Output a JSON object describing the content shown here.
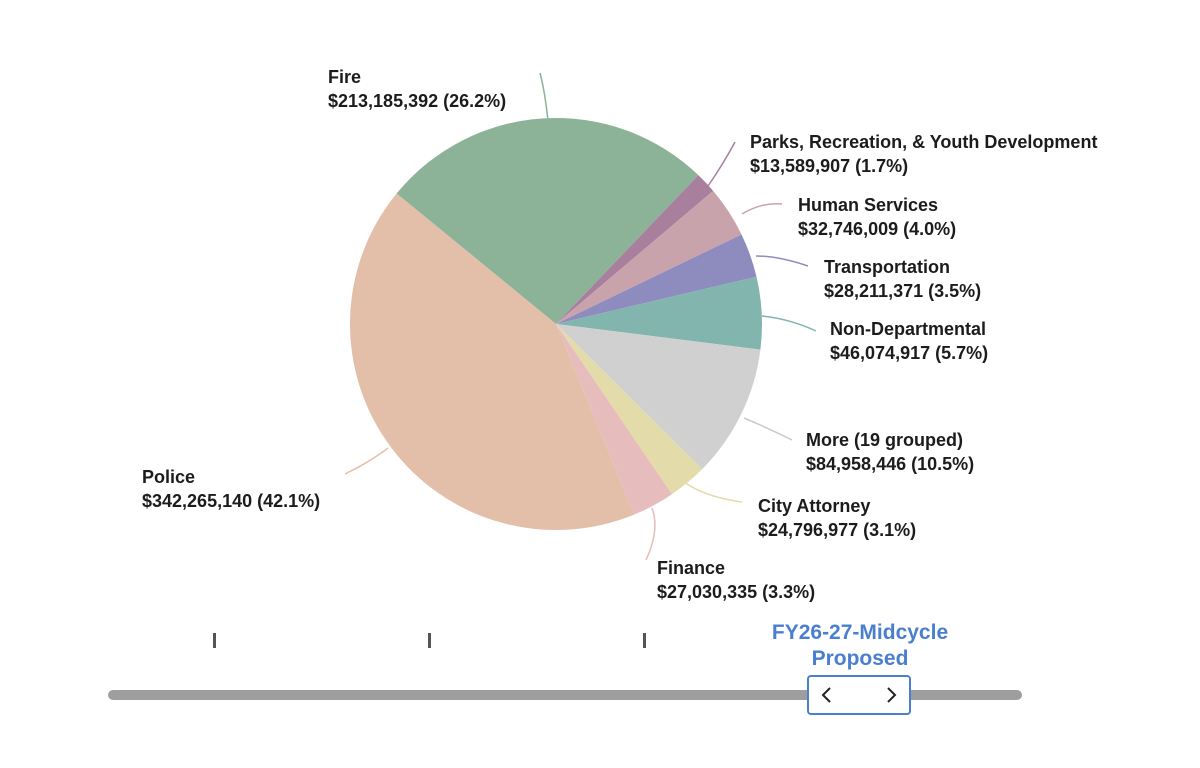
{
  "chart_data": {
    "type": "pie",
    "slices": [
      {
        "name": "Fire",
        "value": 213185392,
        "pct": "26.2%",
        "color": "#8cb398",
        "line": "#8cb398"
      },
      {
        "name": "Parks, Recreation, & Youth Development",
        "value": 13589907,
        "pct": "1.7%",
        "color": "#a97f9e",
        "line": "#a97f9e"
      },
      {
        "name": "Human Services",
        "value": 32746009,
        "pct": "4.0%",
        "color": "#c9a3ac",
        "line": "#c9a3ac"
      },
      {
        "name": "Transportation",
        "value": 28211371,
        "pct": "3.5%",
        "color": "#8e8cbf",
        "line": "#8e8cbf"
      },
      {
        "name": "Non-Departmental",
        "value": 46074917,
        "pct": "5.7%",
        "color": "#82b5ad",
        "line": "#82b5ad"
      },
      {
        "name": "More (19 grouped)",
        "value": 84958446,
        "pct": "10.5%",
        "color": "#d0d0d0",
        "line": "#c8c8d0"
      },
      {
        "name": "City Attorney",
        "value": 24796977,
        "pct": "3.1%",
        "color": "#e4dbab",
        "line": "#e4dbab"
      },
      {
        "name": "Finance",
        "value": 27030335,
        "pct": "3.3%",
        "color": "#e6bcbc",
        "line": "#e6bcbc"
      },
      {
        "name": "Police",
        "value": 342265140,
        "pct": "42.1%",
        "color": "#e3bea8",
        "line": "#e3bea8"
      }
    ],
    "value_labels": [
      "$213,185,392 (26.2%)",
      "$13,589,907 (1.7%)",
      "$32,746,009 (4.0%)",
      "$28,211,371 (3.5%)",
      "$46,074,917 (5.7%)",
      "$84,958,446 (10.5%)",
      "$24,796,977 (3.1%)",
      "$27,030,335 (3.3%)",
      "$342,265,140 (42.1%)"
    ]
  },
  "timeline": {
    "current_label_line1": "FY26-27-Midcycle",
    "current_label_line2": "Proposed",
    "tick_count": 3,
    "accent_color": "#4a7fd0"
  },
  "icons": {
    "prev": "chevron-left-icon",
    "next": "chevron-right-icon"
  }
}
